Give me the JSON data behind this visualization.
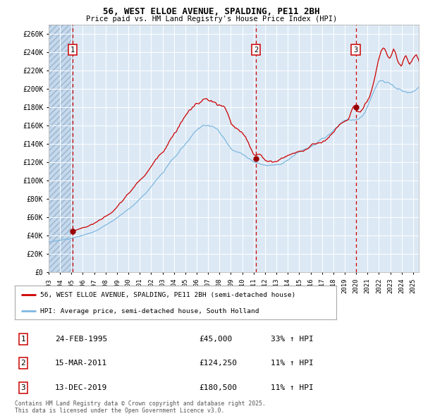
{
  "title": "56, WEST ELLOE AVENUE, SPALDING, PE11 2BH",
  "subtitle": "Price paid vs. HM Land Registry's House Price Index (HPI)",
  "ylabel_ticks": [
    "£0",
    "£20K",
    "£40K",
    "£60K",
    "£80K",
    "£100K",
    "£120K",
    "£140K",
    "£160K",
    "£180K",
    "£200K",
    "£220K",
    "£240K",
    "£260K"
  ],
  "ylim": [
    0,
    270000
  ],
  "ytick_vals": [
    0,
    20000,
    40000,
    60000,
    80000,
    100000,
    120000,
    140000,
    160000,
    180000,
    200000,
    220000,
    240000,
    260000
  ],
  "xlim_start": 1993.0,
  "xlim_end": 2025.5,
  "plot_bg_color": "#dce9f5",
  "legend_label_red": "56, WEST ELLOE AVENUE, SPALDING, PE11 2BH (semi-detached house)",
  "legend_label_blue": "HPI: Average price, semi-detached house, South Holland",
  "footer": "Contains HM Land Registry data © Crown copyright and database right 2025.\nThis data is licensed under the Open Government Licence v3.0.",
  "transactions": [
    {
      "num": 1,
      "date": "24-FEB-1995",
      "price": "£45,000",
      "hpi": "33% ↑ HPI",
      "year": 1995.12
    },
    {
      "num": 2,
      "date": "15-MAR-2011",
      "price": "£124,250",
      "hpi": "11% ↑ HPI",
      "year": 2011.21
    },
    {
      "num": 3,
      "date": "13-DEC-2019",
      "price": "£180,500",
      "hpi": "11% ↑ HPI",
      "year": 2019.96
    }
  ]
}
